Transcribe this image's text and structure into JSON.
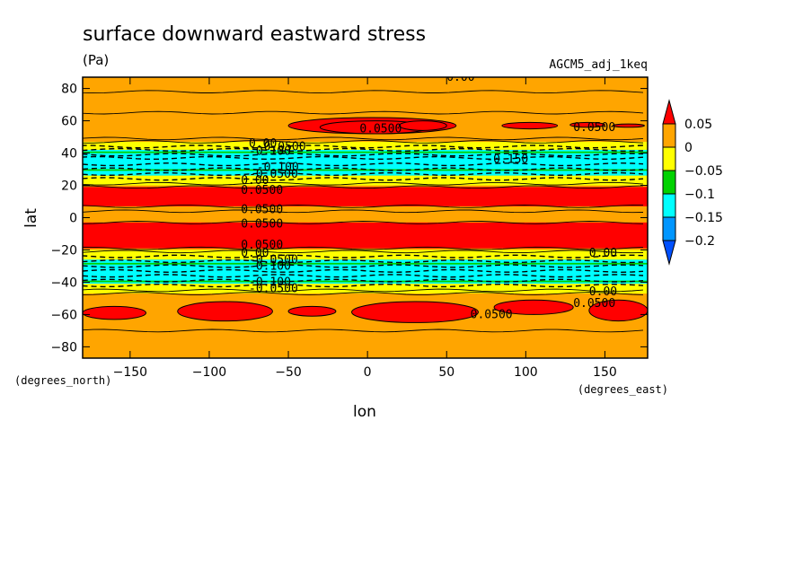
{
  "chart_data": {
    "type": "heatmap",
    "title": "surface downward eastward stress",
    "units": "(Pa)",
    "run_label": "AGCM5_adj_1keq",
    "xlabel": "lon",
    "ylabel": "lat",
    "x_unit_label": "(degrees_east)",
    "y_unit_label": "(degrees_north)",
    "xlim": [
      -180,
      177
    ],
    "ylim": [
      -87,
      87
    ],
    "x_ticks": [
      -150,
      -100,
      -50,
      0,
      50,
      100,
      150
    ],
    "y_ticks": [
      80,
      60,
      40,
      20,
      0,
      -20,
      -40,
      -60,
      -80
    ],
    "legend_labels": [
      "0.05",
      "0",
      "−0.05",
      "−0.1",
      "−0.15",
      "−0.2"
    ],
    "color_levels": [
      {
        "min": 0.05,
        "max": null,
        "color": "#ff0000"
      },
      {
        "min": 0.0,
        "max": 0.05,
        "color": "#ffa500"
      },
      {
        "min": -0.05,
        "max": 0.0,
        "color": "#ffff00"
      },
      {
        "min": -0.1,
        "max": -0.05,
        "color": "#00d200"
      },
      {
        "min": -0.15,
        "max": -0.1,
        "color": "#00ffff"
      },
      {
        "min": -0.2,
        "max": -0.15,
        "color": "#0096ff"
      },
      {
        "min": null,
        "max": -0.2,
        "color": "#0050ff"
      }
    ],
    "latitude_bands": [
      {
        "lat_min": 65,
        "lat_max": 87,
        "level": "0 to 0.05"
      },
      {
        "lat_min": 47,
        "lat_max": 65,
        "level": "0 to 0.05"
      },
      {
        "lat_min": 42,
        "lat_max": 47,
        "level": "-0.05 to 0"
      },
      {
        "lat_min": 26,
        "lat_max": 42,
        "level": "-0.15 to -0.1"
      },
      {
        "lat_min": 20,
        "lat_max": 26,
        "level": "-0.05 to 0"
      },
      {
        "lat_min": 7,
        "lat_max": 19,
        "level": ">0.05"
      },
      {
        "lat_min": -3,
        "lat_max": 7,
        "level": "0 to 0.05"
      },
      {
        "lat_min": -19,
        "lat_max": -3,
        "level": ">0.05"
      },
      {
        "lat_min": -26,
        "lat_max": -20,
        "level": "-0.05 to 0"
      },
      {
        "lat_min": -41,
        "lat_max": -26,
        "level": "-0.15 to -0.1"
      },
      {
        "lat_min": -47,
        "lat_max": -41,
        "level": "-0.05 to 0"
      },
      {
        "lat_min": -87,
        "lat_max": -47,
        "level": "0 to 0.05"
      }
    ],
    "contour_labels": [
      "0.00",
      "0.0500",
      "0.0500",
      "0.00",
      "-0.0500",
      "-0.100",
      "-0.150",
      "-0.100",
      "-0.0500",
      "0.00",
      "0.0500",
      "0.0500",
      "0.0500",
      "0.0500",
      "0.00",
      "-0.0500",
      "-0.100",
      "-0.100",
      "-0.0500",
      "0.00",
      "0.00",
      "0.0500",
      "0.0500"
    ]
  }
}
